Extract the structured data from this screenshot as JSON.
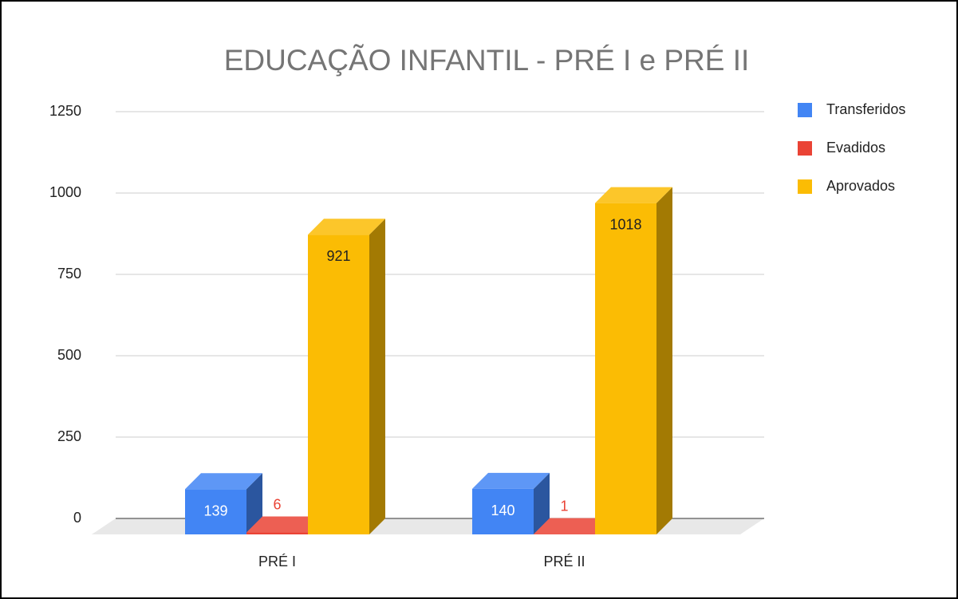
{
  "chart_data": {
    "type": "bar3d",
    "title": "EDUCAÇÃO INFANTIL - PRÉ I e PRÉ II",
    "categories": [
      "PRÉ I",
      "PRÉ II"
    ],
    "series": [
      {
        "name": "Transferidos",
        "color": "#4285f4",
        "label_color": "#ffffff",
        "values": [
          139,
          140
        ]
      },
      {
        "name": "Evadidos",
        "color": "#ea4335",
        "label_color": "#ea4335",
        "values": [
          6,
          1
        ]
      },
      {
        "name": "Aprovados",
        "color": "#fbbc04",
        "label_color": "#222222",
        "values": [
          921,
          1018
        ]
      }
    ],
    "ylim": [
      0,
      1250
    ],
    "yticks": [
      0,
      250,
      500,
      750,
      1000,
      1250
    ],
    "grid": true,
    "legend": "right"
  }
}
